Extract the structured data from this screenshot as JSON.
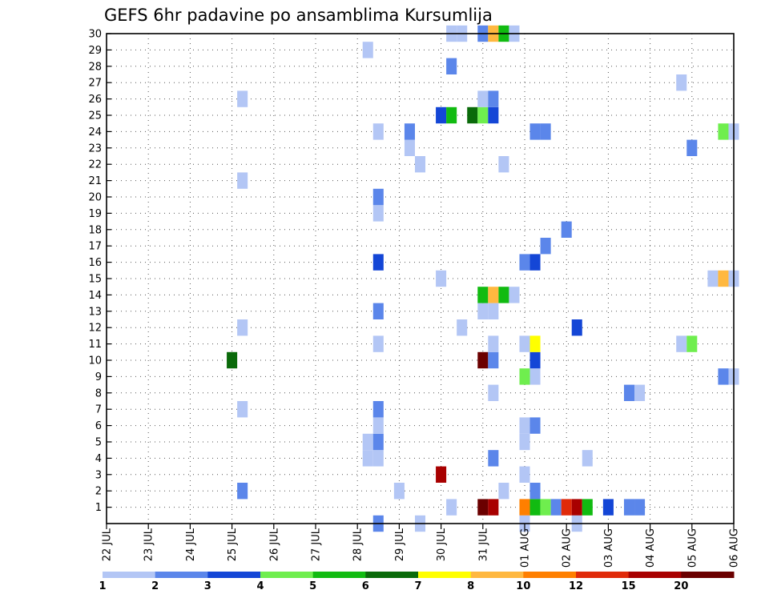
{
  "chart_data": {
    "type": "heatmap",
    "title": "GEFS 6hr padavine po ansamblima Kursumlija",
    "xlabel": "",
    "ylabel": "",
    "x_ticks": [
      "22 JUL",
      "23 JUL",
      "24 JUL",
      "25 JUL",
      "26 JUL",
      "27 JUL",
      "28 JUL",
      "29 JUL",
      "30 JUL",
      "31 JUL",
      "01 AUG",
      "02 AUG",
      "03 AUG",
      "04 AUG",
      "05 AUG",
      "06 AUG"
    ],
    "x_range_days": [
      0,
      15
    ],
    "y_ticks": [
      1,
      2,
      3,
      4,
      5,
      6,
      7,
      8,
      9,
      10,
      11,
      12,
      13,
      14,
      15,
      16,
      17,
      18,
      19,
      20,
      21,
      22,
      23,
      24,
      25,
      26,
      27,
      28,
      29,
      30
    ],
    "y_range": [
      0,
      30
    ],
    "grid": true,
    "step_hours": 6,
    "colorbar": {
      "levels": [
        "1",
        "2",
        "3",
        "4",
        "5",
        "6",
        "7",
        "8",
        "10",
        "12",
        "15",
        "20"
      ],
      "colors": [
        "#b3c6f5",
        "#5b86ea",
        "#1446d6",
        "#6fee4e",
        "#11bb11",
        "#0a6a0a",
        "#ffff00",
        "#ffb840",
        "#ff7f00",
        "#e02a0a",
        "#a80000",
        "#6b0000"
      ],
      "placement": "bottom"
    },
    "cells": [
      {
        "x": 6.25,
        "m": 4,
        "c": 0
      },
      {
        "x": 6.25,
        "m": 5,
        "c": 0
      },
      {
        "x": 6.25,
        "m": 29,
        "c": 0
      },
      {
        "x": 6.5,
        "m": 0,
        "c": 1
      },
      {
        "x": 6.5,
        "m": 4,
        "c": 0
      },
      {
        "x": 6.5,
        "m": 5,
        "c": 1
      },
      {
        "x": 6.5,
        "m": 6,
        "c": 0
      },
      {
        "x": 6.5,
        "m": 7,
        "c": 1
      },
      {
        "x": 6.5,
        "m": 11,
        "c": 0
      },
      {
        "x": 6.5,
        "m": 13,
        "c": 1
      },
      {
        "x": 6.5,
        "m": 16,
        "c": 2
      },
      {
        "x": 6.5,
        "m": 19,
        "c": 0
      },
      {
        "x": 6.5,
        "m": 20,
        "c": 1
      },
      {
        "x": 6.5,
        "m": 24,
        "c": 0
      },
      {
        "x": 3.25,
        "m": 2,
        "c": 1
      },
      {
        "x": 3.25,
        "m": 7,
        "c": 0
      },
      {
        "x": 3.25,
        "m": 12,
        "c": 0
      },
      {
        "x": 3.25,
        "m": 21,
        "c": 0
      },
      {
        "x": 3.25,
        "m": 26,
        "c": 0
      },
      {
        "x": 3.0,
        "m": 10,
        "c": 5
      },
      {
        "x": 7.0,
        "m": 2,
        "c": 0
      },
      {
        "x": 7.25,
        "m": 23,
        "c": 0
      },
      {
        "x": 7.25,
        "m": 24,
        "c": 1
      },
      {
        "x": 7.5,
        "m": 0,
        "c": 0
      },
      {
        "x": 7.5,
        "m": 22,
        "c": 0
      },
      {
        "x": 8.0,
        "m": 3,
        "c": 10
      },
      {
        "x": 8.0,
        "m": 15,
        "c": 0
      },
      {
        "x": 8.0,
        "m": 25,
        "c": 2
      },
      {
        "x": 8.25,
        "m": 1,
        "c": 0
      },
      {
        "x": 8.25,
        "m": 25,
        "c": 4
      },
      {
        "x": 8.25,
        "m": 28,
        "c": 1
      },
      {
        "x": 8.25,
        "m": 30,
        "c": 0
      },
      {
        "x": 8.5,
        "m": 12,
        "c": 0
      },
      {
        "x": 8.5,
        "m": 30,
        "c": 0
      },
      {
        "x": 8.75,
        "m": 25,
        "c": 5
      },
      {
        "x": 9.0,
        "m": 1,
        "c": 11
      },
      {
        "x": 9.0,
        "m": 10,
        "c": 11
      },
      {
        "x": 9.0,
        "m": 13,
        "c": 0
      },
      {
        "x": 9.0,
        "m": 14,
        "c": 4
      },
      {
        "x": 9.0,
        "m": 25,
        "c": 3
      },
      {
        "x": 9.0,
        "m": 26,
        "c": 0
      },
      {
        "x": 9.0,
        "m": 30,
        "c": 1
      },
      {
        "x": 9.25,
        "m": 1,
        "c": 10
      },
      {
        "x": 9.25,
        "m": 4,
        "c": 1
      },
      {
        "x": 9.25,
        "m": 8,
        "c": 0
      },
      {
        "x": 9.25,
        "m": 10,
        "c": 1
      },
      {
        "x": 9.25,
        "m": 11,
        "c": 0
      },
      {
        "x": 9.25,
        "m": 13,
        "c": 0
      },
      {
        "x": 9.25,
        "m": 14,
        "c": 7
      },
      {
        "x": 9.25,
        "m": 25,
        "c": 2
      },
      {
        "x": 9.25,
        "m": 26,
        "c": 1
      },
      {
        "x": 9.25,
        "m": 30,
        "c": 7
      },
      {
        "x": 9.5,
        "m": 2,
        "c": 0
      },
      {
        "x": 9.5,
        "m": 14,
        "c": 4
      },
      {
        "x": 9.5,
        "m": 22,
        "c": 0
      },
      {
        "x": 9.5,
        "m": 30,
        "c": 4
      },
      {
        "x": 9.75,
        "m": 14,
        "c": 0
      },
      {
        "x": 9.75,
        "m": 30,
        "c": 0
      },
      {
        "x": 10.0,
        "m": 0,
        "c": 0
      },
      {
        "x": 10.0,
        "m": 1,
        "c": 8
      },
      {
        "x": 10.0,
        "m": 3,
        "c": 0
      },
      {
        "x": 10.0,
        "m": 5,
        "c": 0
      },
      {
        "x": 10.0,
        "m": 6,
        "c": 0
      },
      {
        "x": 10.0,
        "m": 9,
        "c": 3
      },
      {
        "x": 10.0,
        "m": 11,
        "c": 0
      },
      {
        "x": 10.0,
        "m": 16,
        "c": 1
      },
      {
        "x": 10.25,
        "m": 1,
        "c": 4
      },
      {
        "x": 10.25,
        "m": 2,
        "c": 1
      },
      {
        "x": 10.25,
        "m": 6,
        "c": 1
      },
      {
        "x": 10.25,
        "m": 9,
        "c": 0
      },
      {
        "x": 10.25,
        "m": 10,
        "c": 2
      },
      {
        "x": 10.25,
        "m": 11,
        "c": 6
      },
      {
        "x": 10.25,
        "m": 16,
        "c": 2
      },
      {
        "x": 10.25,
        "m": 24,
        "c": 1
      },
      {
        "x": 10.5,
        "m": 1,
        "c": 3
      },
      {
        "x": 10.5,
        "m": 17,
        "c": 1
      },
      {
        "x": 10.5,
        "m": 24,
        "c": 1
      },
      {
        "x": 10.75,
        "m": 1,
        "c": 1
      },
      {
        "x": 11.0,
        "m": 1,
        "c": 9
      },
      {
        "x": 11.0,
        "m": 18,
        "c": 1
      },
      {
        "x": 11.25,
        "m": 0,
        "c": 0
      },
      {
        "x": 11.25,
        "m": 1,
        "c": 10
      },
      {
        "x": 11.25,
        "m": 12,
        "c": 2
      },
      {
        "x": 11.5,
        "m": 1,
        "c": 4
      },
      {
        "x": 11.5,
        "m": 4,
        "c": 0
      },
      {
        "x": 12.0,
        "m": 1,
        "c": 2
      },
      {
        "x": 12.5,
        "m": 8,
        "c": 1
      },
      {
        "x": 12.5,
        "m": 1,
        "c": 1
      },
      {
        "x": 12.75,
        "m": 8,
        "c": 0
      },
      {
        "x": 12.75,
        "m": 1,
        "c": 1
      },
      {
        "x": 13.75,
        "m": 11,
        "c": 0
      },
      {
        "x": 13.75,
        "m": 27,
        "c": 0
      },
      {
        "x": 14.0,
        "m": 11,
        "c": 3
      },
      {
        "x": 14.0,
        "m": 23,
        "c": 1
      },
      {
        "x": 14.5,
        "m": 15,
        "c": 0
      },
      {
        "x": 14.75,
        "m": 9,
        "c": 1
      },
      {
        "x": 14.75,
        "m": 15,
        "c": 7
      },
      {
        "x": 14.75,
        "m": 24,
        "c": 3
      },
      {
        "x": 15.0,
        "m": 9,
        "c": 0
      },
      {
        "x": 15.0,
        "m": 15,
        "c": 0
      },
      {
        "x": 15.0,
        "m": 24,
        "c": 0
      }
    ]
  }
}
